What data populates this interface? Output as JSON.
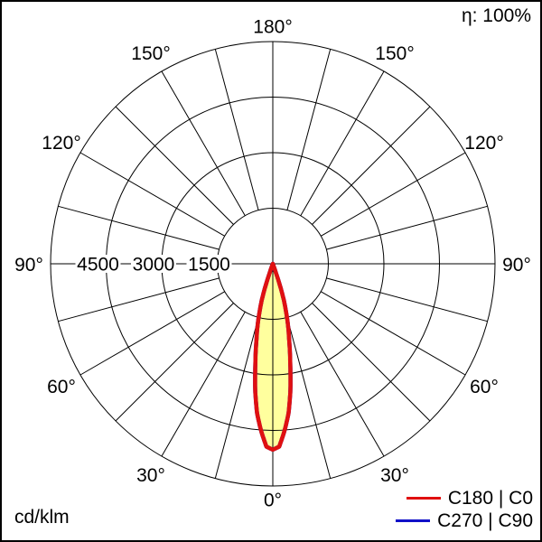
{
  "header": {
    "efficiency_label": "η: 100%"
  },
  "footer": {
    "unit_label": "cd/klm"
  },
  "legend": [
    {
      "label": "C180 | C0",
      "color": "#e01010"
    },
    {
      "label": "C270 | C90",
      "color": "#1010c8"
    }
  ],
  "chart_data": {
    "type": "polar",
    "subtype": "luminous-intensity-distribution",
    "unit": "cd/klm",
    "efficiency_label": "η: 100%",
    "grid": true,
    "grid_angle_step_deg": 15,
    "angle_label_step_deg": 30,
    "angle_labels": [
      {
        "deg": 0,
        "label": "0°"
      },
      {
        "deg": 30,
        "label": "30°"
      },
      {
        "deg": 60,
        "label": "60°"
      },
      {
        "deg": 90,
        "label": "90°"
      },
      {
        "deg": 120,
        "label": "120°"
      },
      {
        "deg": 150,
        "label": "150°"
      },
      {
        "deg": 180,
        "label": "180°"
      }
    ],
    "ring_values": [
      1500,
      3000,
      4500,
      6000
    ],
    "ring_labels": [
      {
        "value": 4500,
        "label": "4500"
      },
      {
        "value": 3000,
        "label": "3000"
      },
      {
        "value": 1500,
        "label": "1500"
      }
    ],
    "r_max": 6000,
    "legend_position": "bottom-right",
    "fill_color": "#ffff9e",
    "series": [
      {
        "name": "C180 | C0",
        "color": "#e01010",
        "symmetric": true,
        "points_angle_value": [
          [
            0,
            5020
          ],
          [
            2,
            4940
          ],
          [
            4,
            4520
          ],
          [
            6,
            4060
          ],
          [
            8,
            3420
          ],
          [
            9,
            3050
          ],
          [
            10,
            2710
          ],
          [
            12,
            2130
          ],
          [
            14,
            1680
          ],
          [
            15,
            1450
          ],
          [
            16,
            1220
          ],
          [
            17,
            1000
          ],
          [
            18,
            700
          ],
          [
            19,
            330
          ],
          [
            20,
            80
          ],
          [
            20.5,
            0
          ]
        ]
      },
      {
        "name": "C270 | C90",
        "color": "#1010c8",
        "symmetric": true,
        "note": "coincides with C180 | C0 curve (hidden beneath it)",
        "points_angle_value": [
          [
            0,
            5020
          ],
          [
            2,
            4940
          ],
          [
            4,
            4520
          ],
          [
            6,
            4060
          ],
          [
            8,
            3420
          ],
          [
            9,
            3050
          ],
          [
            10,
            2710
          ],
          [
            12,
            2130
          ],
          [
            14,
            1680
          ],
          [
            15,
            1450
          ],
          [
            16,
            1220
          ],
          [
            17,
            1000
          ],
          [
            18,
            700
          ],
          [
            19,
            330
          ],
          [
            20,
            80
          ],
          [
            20.5,
            0
          ]
        ]
      }
    ]
  }
}
